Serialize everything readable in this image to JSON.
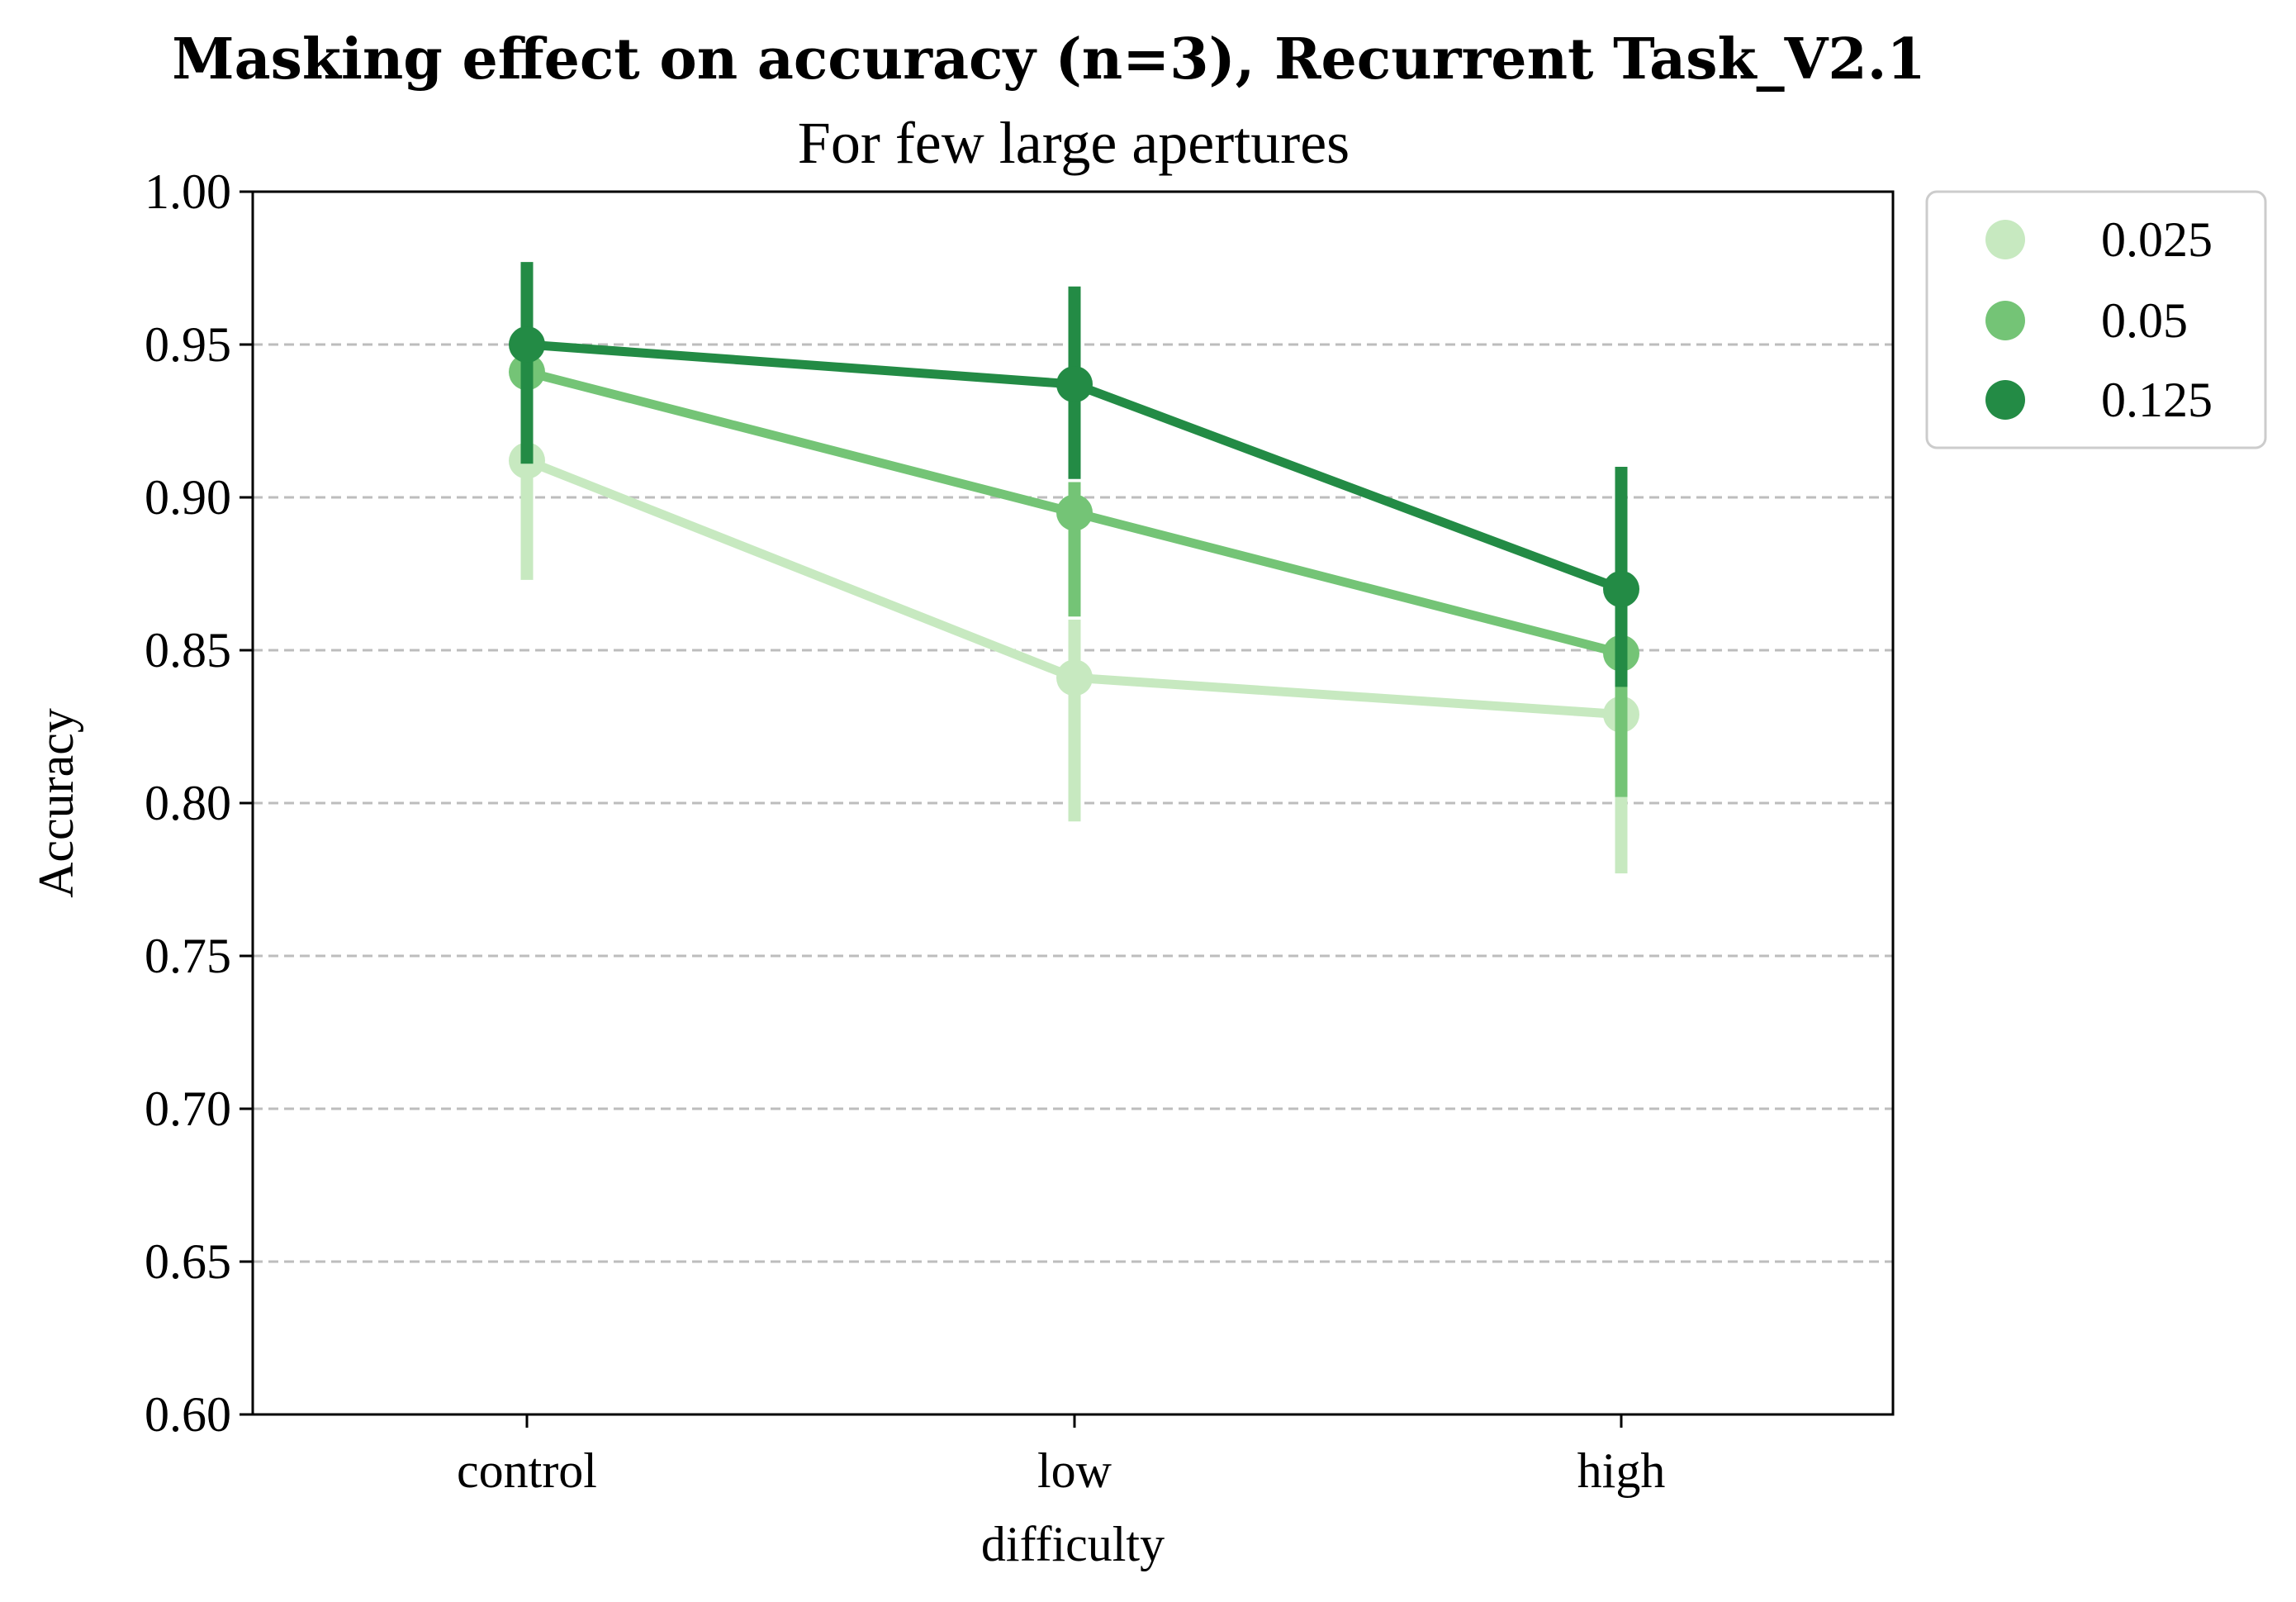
{
  "chart_data": {
    "type": "line",
    "title": "Masking effect on accuracy (n=3), Recurrent Task_V2.1",
    "subtitle": "For few large apertures",
    "xlabel": "difficulty",
    "ylabel": "Accuracy",
    "categories": [
      "control",
      "low",
      "high"
    ],
    "ylim": [
      0.6,
      1.0
    ],
    "yticks": [
      0.6,
      0.65,
      0.7,
      0.75,
      0.8,
      0.85,
      0.9,
      0.95,
      1.0
    ],
    "ytick_labels": [
      "0.60",
      "0.65",
      "0.70",
      "0.75",
      "0.80",
      "0.85",
      "0.90",
      "0.95",
      "1.00"
    ],
    "grid": "horizontal dashed",
    "legend_position": "outside upper right",
    "series": [
      {
        "name": "0.025",
        "color": "#c7e9c0",
        "values": [
          0.912,
          0.841,
          0.829
        ],
        "ci_low": [
          0.873,
          0.794,
          0.777
        ],
        "ci_high": [
          0.912,
          0.86,
          0.829
        ]
      },
      {
        "name": "0.05",
        "color": "#74c476",
        "values": [
          0.941,
          0.895,
          0.849
        ],
        "ci_low": [
          0.941,
          0.861,
          0.802
        ],
        "ci_high": [
          0.941,
          0.905,
          0.849
        ]
      },
      {
        "name": "0.125",
        "color": "#238b45",
        "values": [
          0.95,
          0.937,
          0.87
        ],
        "ci_low": [
          0.911,
          0.906,
          0.838
        ],
        "ci_high": [
          0.977,
          0.969,
          0.91
        ]
      }
    ]
  }
}
